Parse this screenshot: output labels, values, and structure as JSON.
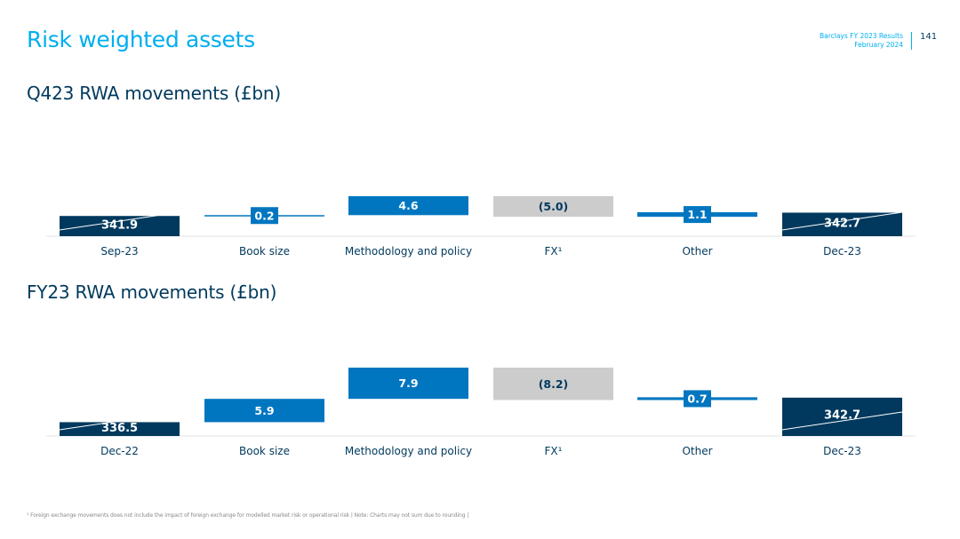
{
  "header": {
    "title": "Risk weighted assets",
    "meta_line1": "Barclays FY 2023 Results",
    "meta_line2": "February 2024",
    "page_number": "141"
  },
  "colors": {
    "accent": "#00aeef",
    "dark_blue": "#00395d",
    "mid_blue": "#0076c0",
    "grey": "#cccccc"
  },
  "chart_data": [
    {
      "type": "bar",
      "subtype": "waterfall",
      "title": "Q423 RWA movements (£bn)",
      "categories": [
        "Sep-23",
        "Book size",
        "Methodology and policy",
        "FX¹",
        "Other",
        "Dec-23"
      ],
      "values": [
        341.9,
        0.2,
        4.6,
        -5.0,
        1.1,
        342.7
      ],
      "labels": [
        "341.9",
        "0.2",
        "4.6",
        "(5.0)",
        "1.1",
        "342.7"
      ],
      "kinds": [
        "total",
        "increase",
        "increase",
        "decrease",
        "increase",
        "total"
      ]
    },
    {
      "type": "bar",
      "subtype": "waterfall",
      "title": "FY23 RWA movements (£bn)",
      "categories": [
        "Dec-22",
        "Book size",
        "Methodology and policy",
        "FX¹",
        "Other",
        "Dec-23"
      ],
      "values": [
        336.5,
        5.9,
        7.9,
        -8.2,
        0.7,
        342.7
      ],
      "labels": [
        "336.5",
        "5.9",
        "7.9",
        "(8.2)",
        "0.7",
        "342.7"
      ],
      "kinds": [
        "total",
        "increase",
        "increase",
        "decrease",
        "increase",
        "total"
      ]
    }
  ],
  "footnote": "¹ Foreign exchange movements does not include the impact of foreign exchange for modelled market risk or operational risk | Note: Charts may not sum due to rounding |"
}
